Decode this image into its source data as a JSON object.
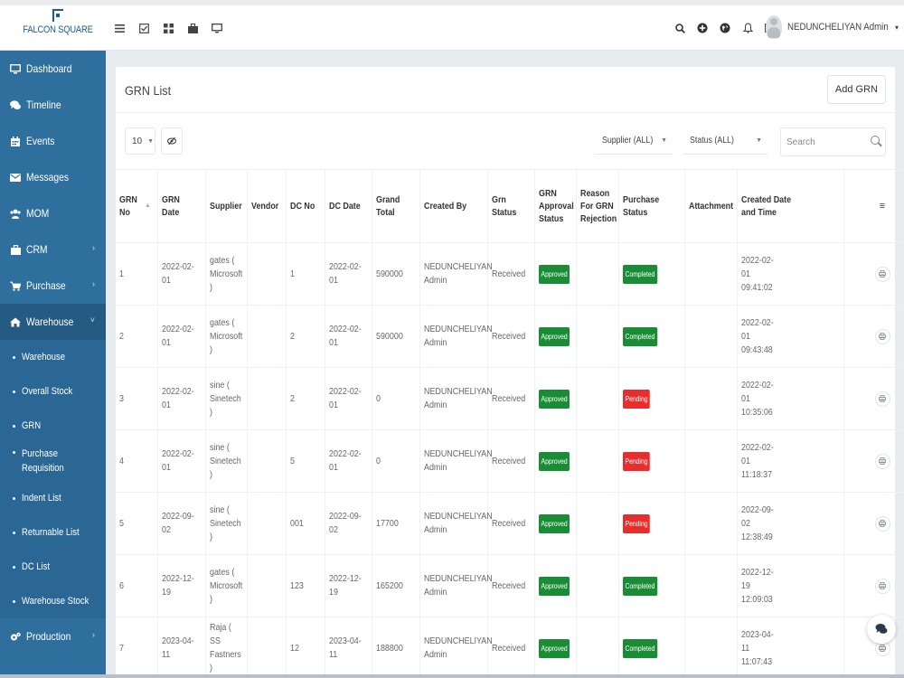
{
  "brand": {
    "name": "FALCON SQUARE"
  },
  "header": {
    "left_icons": [
      "list-icon",
      "check-square-icon",
      "grid-icon",
      "briefcase-icon",
      "monitor-icon"
    ],
    "right_icons": [
      "search-icon",
      "plus-circle-icon",
      "globe-icon",
      "bell-icon",
      "envelope-icon"
    ],
    "user_name": "NEDUNCHELIYAN Admin",
    "user_caret": "▾"
  },
  "sidebar": {
    "items": [
      {
        "label": "Dashboard",
        "icon": "monitor-icon"
      },
      {
        "label": "Timeline",
        "icon": "comments-icon"
      },
      {
        "label": "Events",
        "icon": "calendar-icon"
      },
      {
        "label": "Messages",
        "icon": "envelope-icon"
      },
      {
        "label": "MOM",
        "icon": "users-icon"
      },
      {
        "label": "CRM",
        "icon": "briefcase-icon",
        "chevron": "›"
      },
      {
        "label": "Purchase",
        "icon": "cart-icon",
        "chevron": "›"
      },
      {
        "label": "Warehouse",
        "icon": "home-icon",
        "chevron": "˅"
      }
    ],
    "warehouse_sub": [
      "Warehouse",
      "Overall Stock",
      "GRN",
      "Purchase Requisition",
      "Indent List",
      "Returnable List",
      "DC List",
      "Warehouse Stock"
    ],
    "production": {
      "label": "Production",
      "icon": "cogs-icon",
      "chevron": "›"
    }
  },
  "page": {
    "title": "GRN List",
    "add_button": "Add GRN",
    "page_length": "10",
    "supplier_filter": "Supplier (ALL)",
    "status_filter": "Status (ALL)",
    "search_placeholder": "Search"
  },
  "table": {
    "columns": [
      "GRN No",
      "GRN Date",
      "Supplier",
      "Vendor",
      "DC No",
      "DC Date",
      "Grand Total",
      "Created By",
      "Grn Status",
      "GRN Approval Status",
      "Reason For GRN Rejection",
      "Purchase Status",
      "Attachment",
      "Created Date and Time",
      "≡"
    ],
    "rows": [
      {
        "no": "1",
        "date": "2022-02-01",
        "supplier": "gates ( Microsoft )",
        "vendor": "",
        "dc_no": "1",
        "dc_date": "2022-02-01",
        "total": "590000",
        "created_by": "NEDUNCHELIYAN Admin",
        "grn_status": "Received",
        "approval": "Approved",
        "reason": "",
        "purchase": "Completed",
        "attachment": "",
        "created": "2022-02-01 09:41:02"
      },
      {
        "no": "2",
        "date": "2022-02-01",
        "supplier": "gates ( Microsoft )",
        "vendor": "",
        "dc_no": "2",
        "dc_date": "2022-02-01",
        "total": "590000",
        "created_by": "NEDUNCHELIYAN Admin",
        "grn_status": "Received",
        "approval": "Approved",
        "reason": "",
        "purchase": "Completed",
        "attachment": "",
        "created": "2022-02-01 09:43:48"
      },
      {
        "no": "3",
        "date": "2022-02-01",
        "supplier": "sine ( Sinetech )",
        "vendor": "",
        "dc_no": "2",
        "dc_date": "2022-02-01",
        "total": "0",
        "created_by": "NEDUNCHELIYAN Admin",
        "grn_status": "Received",
        "approval": "Approved",
        "reason": "",
        "purchase": "Pending",
        "attachment": "",
        "created": "2022-02-01 10:35:06"
      },
      {
        "no": "4",
        "date": "2022-02-01",
        "supplier": "sine ( Sinetech )",
        "vendor": "",
        "dc_no": "5",
        "dc_date": "2022-02-01",
        "total": "0",
        "created_by": "NEDUNCHELIYAN Admin",
        "grn_status": "Received",
        "approval": "Approved",
        "reason": "",
        "purchase": "Pending",
        "attachment": "",
        "created": "2022-02-01 11:18:37"
      },
      {
        "no": "5",
        "date": "2022-09-02",
        "supplier": "sine ( Sinetech )",
        "vendor": "",
        "dc_no": "001",
        "dc_date": "2022-09-02",
        "total": "17700",
        "created_by": "NEDUNCHELIYAN Admin",
        "grn_status": "Received",
        "approval": "Approved",
        "reason": "",
        "purchase": "Pending",
        "attachment": "",
        "created": "2022-09-02 12:38:49"
      },
      {
        "no": "6",
        "date": "2022-12-19",
        "supplier": "gates ( Microsoft )",
        "vendor": "",
        "dc_no": "123",
        "dc_date": "2022-12-19",
        "total": "165200",
        "created_by": "NEDUNCHELIYAN Admin",
        "grn_status": "Received",
        "approval": "Approved",
        "reason": "",
        "purchase": "Completed",
        "attachment": "",
        "created": "2022-12-19 12:09:03"
      },
      {
        "no": "7",
        "date": "2023-04-11",
        "supplier": "Raja ( SS Fastners )",
        "vendor": "",
        "dc_no": "12",
        "dc_date": "2023-04-11",
        "total": "188800",
        "created_by": "NEDUNCHELIYAN Admin",
        "grn_status": "Received",
        "approval": "Approved",
        "reason": "",
        "purchase": "Completed",
        "attachment": "",
        "created": "2023-04-11 11:07:43"
      }
    ]
  },
  "colors": {
    "sidebar": "#2e6f9e",
    "approved": "#1a8c35",
    "pending": "#e82d2d"
  }
}
